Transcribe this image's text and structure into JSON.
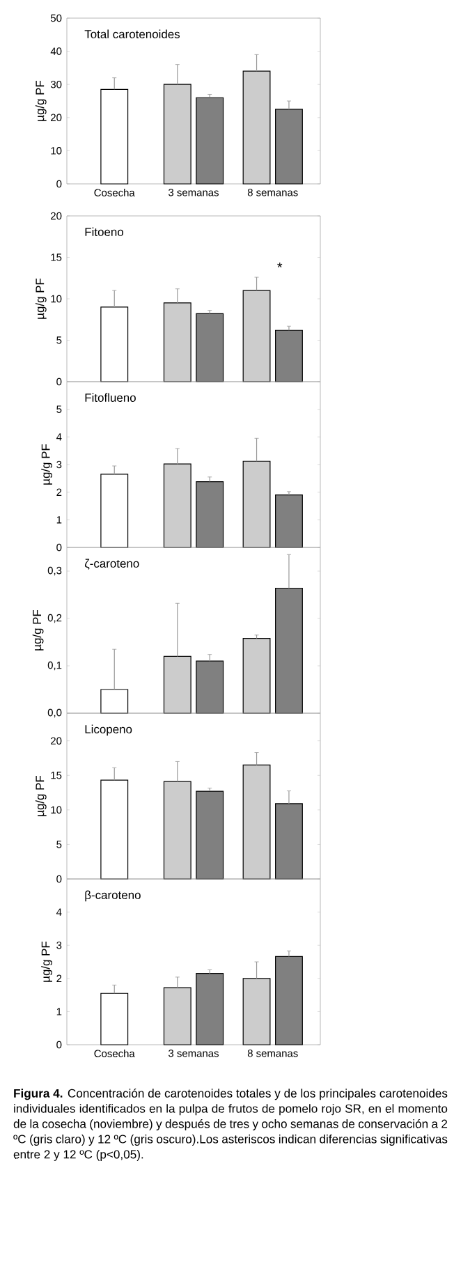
{
  "chart_data": [
    {
      "type": "bar",
      "title": "Total carotenoides",
      "ylabel": "µg/g PF",
      "categories": [
        "Cosecha",
        "3 semanas",
        "8 semanas"
      ],
      "ylim": [
        0,
        50
      ],
      "yticks": [
        0,
        10,
        20,
        30,
        40,
        50
      ],
      "series": [
        {
          "color": "#ffffff",
          "values": [
            28.5,
            null,
            null
          ],
          "errors": [
            3.5,
            null,
            null
          ]
        },
        {
          "color": "#cccccc",
          "values": [
            null,
            30,
            34
          ],
          "errors": [
            null,
            6,
            5
          ]
        },
        {
          "color": "#808080",
          "values": [
            null,
            26,
            22.5
          ],
          "errors": [
            null,
            1,
            2.5
          ]
        }
      ]
    },
    {
      "type": "bar",
      "title": "Fitoeno",
      "ylabel": "µg/g PF",
      "categories": [
        null,
        null,
        null
      ],
      "ylim": [
        0,
        20
      ],
      "yticks": [
        0,
        5,
        10,
        15,
        20
      ],
      "tick_labels": "y",
      "annotations": [
        "*"
      ],
      "series": [
        {
          "color": "#ffffff",
          "values": [
            9,
            null,
            null
          ],
          "errors": [
            2,
            null,
            null
          ]
        },
        {
          "color": "#cccccc",
          "values": [
            null,
            9.5,
            11
          ],
          "errors": [
            null,
            1.7,
            1.6
          ]
        },
        {
          "color": "#808080",
          "values": [
            null,
            8.2,
            6.2
          ],
          "errors": [
            null,
            0.4,
            0.5
          ]
        }
      ]
    },
    {
      "type": "bar",
      "title": "Fitoflueno",
      "ylabel": "µg/g PF",
      "categories": [
        null,
        null,
        null
      ],
      "ylim": [
        0,
        6
      ],
      "yticks": [
        0,
        1,
        2,
        3,
        4,
        5
      ],
      "tick_labels": "y",
      "series": [
        {
          "color": "#ffffff",
          "values": [
            2.65,
            null,
            null
          ],
          "errors": [
            0.3,
            null,
            null
          ]
        },
        {
          "color": "#cccccc",
          "values": [
            null,
            3.02,
            3.12
          ],
          "errors": [
            null,
            0.56,
            0.83
          ]
        },
        {
          "color": "#808080",
          "values": [
            null,
            2.38,
            1.9
          ],
          "errors": [
            null,
            0.17,
            0.12
          ]
        }
      ]
    },
    {
      "type": "bar",
      "title": "ζ-caroteno",
      "ylabel": "µg/g PF",
      "categories": [
        null,
        null,
        null
      ],
      "ylim": [
        0,
        0.35
      ],
      "tick_labels": "y",
      "yticks": [
        {
          "value": 0,
          "label": "0,0"
        },
        {
          "value": 0.1,
          "label": "0,1"
        },
        {
          "value": 0.2,
          "label": "0,2"
        },
        {
          "value": 0.3,
          "label": "0,3"
        }
      ],
      "series": [
        {
          "color": "#ffffff",
          "values": [
            0.05,
            null,
            null
          ],
          "errors": [
            0.085,
            null,
            null
          ]
        },
        {
          "color": "#cccccc",
          "values": [
            null,
            0.12,
            0.158
          ],
          "errors": [
            null,
            0.112,
            0.007
          ]
        },
        {
          "color": "#808080",
          "values": [
            null,
            0.11,
            0.264
          ],
          "errors": [
            null,
            0.014,
            0.071
          ]
        }
      ]
    },
    {
      "type": "bar",
      "title": "Licopeno",
      "ylabel": "µg/g PF",
      "categories": [
        null,
        null,
        null
      ],
      "ylim": [
        0,
        24
      ],
      "yticks": [
        0,
        5,
        10,
        15,
        20
      ],
      "tick_labels": "y",
      "series": [
        {
          "color": "#ffffff",
          "values": [
            14.3,
            null,
            null
          ],
          "errors": [
            1.8,
            null,
            null
          ]
        },
        {
          "color": "#cccccc",
          "values": [
            null,
            14.1,
            16.5
          ],
          "errors": [
            null,
            2.9,
            1.8
          ]
        },
        {
          "color": "#808080",
          "values": [
            null,
            12.7,
            10.9
          ],
          "errors": [
            null,
            0.45,
            1.85
          ]
        }
      ]
    },
    {
      "type": "bar",
      "title": "β-caroteno",
      "ylabel": "µg/g PF",
      "categories": [
        "Cosecha",
        "3 semanas",
        "8 semanas"
      ],
      "ylim": [
        0,
        5
      ],
      "yticks": [
        0,
        1,
        2,
        3,
        4
      ],
      "annotations": [
        "**Figura 4.** Concentración de carotenoides totales y de los principales carotenoides individuales identificados en la pulpa de frutos de pomelo rojo SR, en el momento de la cosecha (noviembre) y después de tres y ocho semanas de conservación a 2 ºC (gris claro) y 12 ºC (gris oscuro).Los asteriscos indican diferencias significativas entre 2 y 12 ºC (p<0,05)."
      ],
      "series": [
        {
          "color": "#ffffff",
          "values": [
            1.55,
            null,
            null
          ],
          "errors": [
            0.25,
            null,
            null
          ]
        },
        {
          "color": "#cccccc",
          "values": [
            null,
            1.72,
            2.0
          ],
          "errors": [
            null,
            0.32,
            0.5
          ]
        },
        {
          "color": "#808080",
          "values": [
            null,
            2.15,
            2.66
          ],
          "errors": [
            null,
            0.11,
            0.17
          ]
        }
      ]
    }
  ]
}
